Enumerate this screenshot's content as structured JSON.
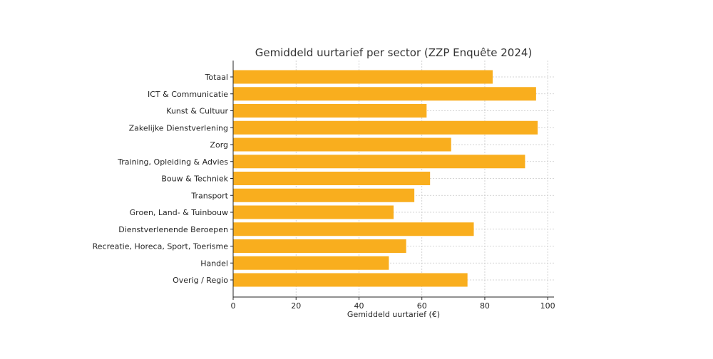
{
  "chart_data": {
    "type": "bar",
    "orientation": "horizontal",
    "title": "Gemiddeld uurtarief per sector (ZZP Enquête 2024)",
    "xlabel": "Gemiddeld uurtarief (€)",
    "ylabel": "",
    "xlim": [
      0,
      102
    ],
    "xticks": [
      0,
      20,
      40,
      60,
      80,
      100
    ],
    "grid": true,
    "bar_color": "#F9AE1E",
    "categories": [
      "Totaal",
      "ICT & Communicatie",
      "Kunst & Cultuur",
      "Zakelijke Dienstverlening",
      "Zorg",
      "Training, Opleiding & Advies",
      "Bouw & Techniek",
      "Transport",
      "Groen, Land- & Tuinbouw",
      "Dienstverlenende Beroepen",
      "Recreatie, Horeca, Sport, Toerisme",
      "Handel",
      "Overig / Regio"
    ],
    "values": [
      82.5,
      96.3,
      61.5,
      96.8,
      69.3,
      92.8,
      62.6,
      57.6,
      51.0,
      76.5,
      55.0,
      49.5,
      74.5
    ]
  }
}
